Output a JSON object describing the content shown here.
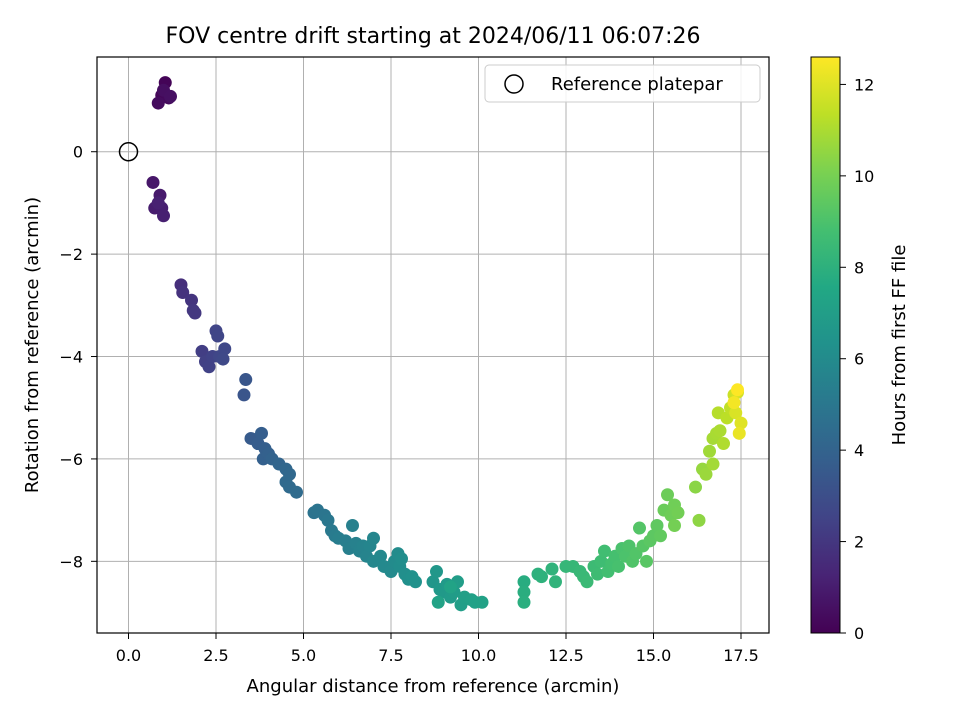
{
  "chart_data": {
    "type": "scatter",
    "title": "FOV centre drift starting at 2024/06/11 06:07:26",
    "xlabel": "Angular distance from reference (arcmin)",
    "ylabel": "Rotation from reference (arcmin)",
    "xlim": [
      -0.9,
      18.3
    ],
    "ylim": [
      -9.4,
      1.85
    ],
    "xticks": [
      0.0,
      2.5,
      5.0,
      7.5,
      10.0,
      12.5,
      15.0,
      17.5
    ],
    "xtick_labels": [
      "0.0",
      "2.5",
      "5.0",
      "7.5",
      "10.0",
      "12.5",
      "15.0",
      "17.5"
    ],
    "yticks": [
      0,
      -2,
      -4,
      -6,
      -8
    ],
    "ytick_labels": [
      "0",
      "−2",
      "−4",
      "−6",
      "−8"
    ],
    "grid": true,
    "legend": {
      "position": "top-right",
      "entries": [
        "Reference platepar"
      ]
    },
    "reference_point": {
      "x": 0.0,
      "y": 0.0
    },
    "colorbar": {
      "label": "Hours from first FF file",
      "range": [
        0,
        12.6
      ],
      "ticks": [
        0,
        2,
        4,
        6,
        8,
        10,
        12
      ],
      "tick_labels": [
        "0",
        "2",
        "4",
        "6",
        "8",
        "10",
        "12"
      ],
      "colormap": "viridis"
    },
    "points": [
      [
        1.05,
        1.35,
        0.1
      ],
      [
        0.95,
        1.1,
        0.2
      ],
      [
        1.15,
        1.05,
        0.3
      ],
      [
        0.85,
        0.95,
        0.4
      ],
      [
        1.0,
        1.2,
        0.5
      ],
      [
        1.2,
        1.08,
        0.55
      ],
      [
        0.7,
        -0.6,
        0.8
      ],
      [
        0.9,
        -0.85,
        0.9
      ],
      [
        0.75,
        -1.1,
        1.0
      ],
      [
        0.95,
        -1.1,
        1.05
      ],
      [
        1.0,
        -1.25,
        1.1
      ],
      [
        0.85,
        -1.0,
        1.15
      ],
      [
        1.5,
        -2.6,
        1.7
      ],
      [
        1.55,
        -2.75,
        1.8
      ],
      [
        1.8,
        -2.9,
        1.9
      ],
      [
        1.85,
        -3.1,
        2.0
      ],
      [
        1.9,
        -3.15,
        2.05
      ],
      [
        2.1,
        -3.9,
        2.3
      ],
      [
        2.2,
        -4.1,
        2.4
      ],
      [
        2.3,
        -4.2,
        2.45
      ],
      [
        2.4,
        -4.0,
        2.5
      ],
      [
        2.5,
        -3.5,
        2.55
      ],
      [
        2.55,
        -3.6,
        2.6
      ],
      [
        2.6,
        -4.0,
        2.65
      ],
      [
        2.75,
        -3.85,
        2.7
      ],
      [
        2.7,
        -4.05,
        2.75
      ],
      [
        3.3,
        -4.75,
        3.3
      ],
      [
        3.35,
        -4.45,
        3.35
      ],
      [
        3.5,
        -5.6,
        3.6
      ],
      [
        3.7,
        -5.7,
        3.7
      ],
      [
        3.8,
        -5.5,
        3.75
      ],
      [
        3.9,
        -5.8,
        3.8
      ],
      [
        3.85,
        -6.0,
        3.85
      ],
      [
        4.0,
        -5.9,
        3.9
      ],
      [
        4.1,
        -6.0,
        4.0
      ],
      [
        4.3,
        -6.1,
        4.1
      ],
      [
        4.5,
        -6.2,
        4.2
      ],
      [
        4.6,
        -6.3,
        4.25
      ],
      [
        4.5,
        -6.45,
        4.3
      ],
      [
        4.6,
        -6.55,
        4.35
      ],
      [
        4.8,
        -6.65,
        4.4
      ],
      [
        5.3,
        -7.05,
        4.8
      ],
      [
        5.4,
        -7.0,
        4.85
      ],
      [
        5.6,
        -7.1,
        4.9
      ],
      [
        5.7,
        -7.2,
        5.0
      ],
      [
        5.8,
        -7.4,
        5.1
      ],
      [
        5.9,
        -7.5,
        5.2
      ],
      [
        6.0,
        -7.55,
        5.3
      ],
      [
        6.2,
        -7.6,
        5.35
      ],
      [
        6.3,
        -7.75,
        5.4
      ],
      [
        6.4,
        -7.3,
        5.45
      ],
      [
        6.5,
        -7.65,
        5.5
      ],
      [
        6.6,
        -7.8,
        5.55
      ],
      [
        6.7,
        -7.7,
        5.6
      ],
      [
        6.8,
        -7.9,
        5.65
      ],
      [
        6.9,
        -7.7,
        5.7
      ],
      [
        7.0,
        -7.55,
        5.75
      ],
      [
        7.0,
        -8.0,
        5.8
      ],
      [
        7.2,
        -7.9,
        5.85
      ],
      [
        7.3,
        -8.1,
        5.9
      ],
      [
        7.5,
        -8.2,
        5.95
      ],
      [
        7.6,
        -8.0,
        6.0
      ],
      [
        7.7,
        -7.85,
        6.05
      ],
      [
        7.75,
        -8.1,
        6.1
      ],
      [
        7.8,
        -7.95,
        6.15
      ],
      [
        7.9,
        -8.25,
        6.2
      ],
      [
        8.0,
        -8.35,
        6.25
      ],
      [
        8.1,
        -8.3,
        6.3
      ],
      [
        8.2,
        -8.4,
        6.35
      ],
      [
        8.7,
        -8.4,
        6.6
      ],
      [
        8.8,
        -8.2,
        6.65
      ],
      [
        8.9,
        -8.55,
        6.7
      ],
      [
        9.0,
        -8.6,
        6.75
      ],
      [
        9.1,
        -8.45,
        6.8
      ],
      [
        9.2,
        -8.7,
        6.85
      ],
      [
        9.3,
        -8.6,
        6.9
      ],
      [
        9.4,
        -8.4,
        6.95
      ],
      [
        9.5,
        -8.85,
        7.0
      ],
      [
        9.6,
        -8.7,
        7.05
      ],
      [
        9.8,
        -8.75,
        7.1
      ],
      [
        9.9,
        -8.8,
        7.15
      ],
      [
        10.1,
        -8.8,
        7.2
      ],
      [
        8.85,
        -8.8,
        7.25
      ],
      [
        9.2,
        -8.5,
        7.3
      ],
      [
        11.3,
        -8.4,
        7.8
      ],
      [
        11.3,
        -8.6,
        7.85
      ],
      [
        11.3,
        -8.8,
        7.9
      ],
      [
        11.7,
        -8.25,
        8.0
      ],
      [
        11.8,
        -8.3,
        8.05
      ],
      [
        12.1,
        -8.15,
        8.1
      ],
      [
        12.2,
        -8.4,
        8.15
      ],
      [
        12.5,
        -8.1,
        8.3
      ],
      [
        12.7,
        -8.1,
        8.35
      ],
      [
        12.9,
        -8.2,
        8.4
      ],
      [
        13.0,
        -8.3,
        8.45
      ],
      [
        13.1,
        -8.4,
        8.5
      ],
      [
        13.3,
        -8.1,
        8.55
      ],
      [
        13.4,
        -8.25,
        8.6
      ],
      [
        13.5,
        -8.0,
        8.65
      ],
      [
        13.6,
        -7.8,
        8.7
      ],
      [
        13.7,
        -8.2,
        8.75
      ],
      [
        13.8,
        -8.05,
        8.8
      ],
      [
        13.9,
        -7.9,
        8.85
      ],
      [
        14.0,
        -8.1,
        8.9
      ],
      [
        14.1,
        -7.75,
        8.95
      ],
      [
        14.2,
        -7.9,
        9.0
      ],
      [
        14.3,
        -7.7,
        9.05
      ],
      [
        14.4,
        -8.0,
        9.1
      ],
      [
        14.5,
        -7.85,
        9.15
      ],
      [
        14.6,
        -7.35,
        9.2
      ],
      [
        14.7,
        -7.7,
        9.25
      ],
      [
        14.8,
        -8.0,
        9.3
      ],
      [
        14.9,
        -7.6,
        9.35
      ],
      [
        15.0,
        -7.5,
        9.4
      ],
      [
        15.1,
        -7.3,
        9.45
      ],
      [
        15.2,
        -7.5,
        9.5
      ],
      [
        15.3,
        -7.0,
        9.7
      ],
      [
        15.4,
        -6.7,
        9.75
      ],
      [
        15.5,
        -7.1,
        9.8
      ],
      [
        15.6,
        -6.9,
        9.85
      ],
      [
        15.7,
        -7.05,
        9.9
      ],
      [
        15.6,
        -7.3,
        9.95
      ],
      [
        16.2,
        -6.55,
        10.4
      ],
      [
        16.3,
        -7.2,
        10.45
      ],
      [
        16.4,
        -6.2,
        10.6
      ],
      [
        16.5,
        -6.3,
        10.7
      ],
      [
        16.6,
        -5.85,
        10.8
      ],
      [
        16.7,
        -6.1,
        10.85
      ],
      [
        16.7,
        -5.6,
        10.9
      ],
      [
        16.8,
        -5.5,
        10.95
      ],
      [
        16.9,
        -5.45,
        11.0
      ],
      [
        17.0,
        -5.7,
        11.1
      ],
      [
        16.85,
        -5.1,
        11.2
      ],
      [
        17.1,
        -5.2,
        11.3
      ],
      [
        17.2,
        -5.0,
        11.4
      ],
      [
        17.3,
        -4.75,
        11.6
      ],
      [
        17.4,
        -4.7,
        11.8
      ],
      [
        17.35,
        -5.1,
        11.9
      ],
      [
        17.5,
        -5.3,
        12.0
      ],
      [
        17.45,
        -5.5,
        12.2
      ],
      [
        17.3,
        -4.9,
        12.4
      ],
      [
        17.4,
        -4.65,
        12.6
      ]
    ]
  }
}
